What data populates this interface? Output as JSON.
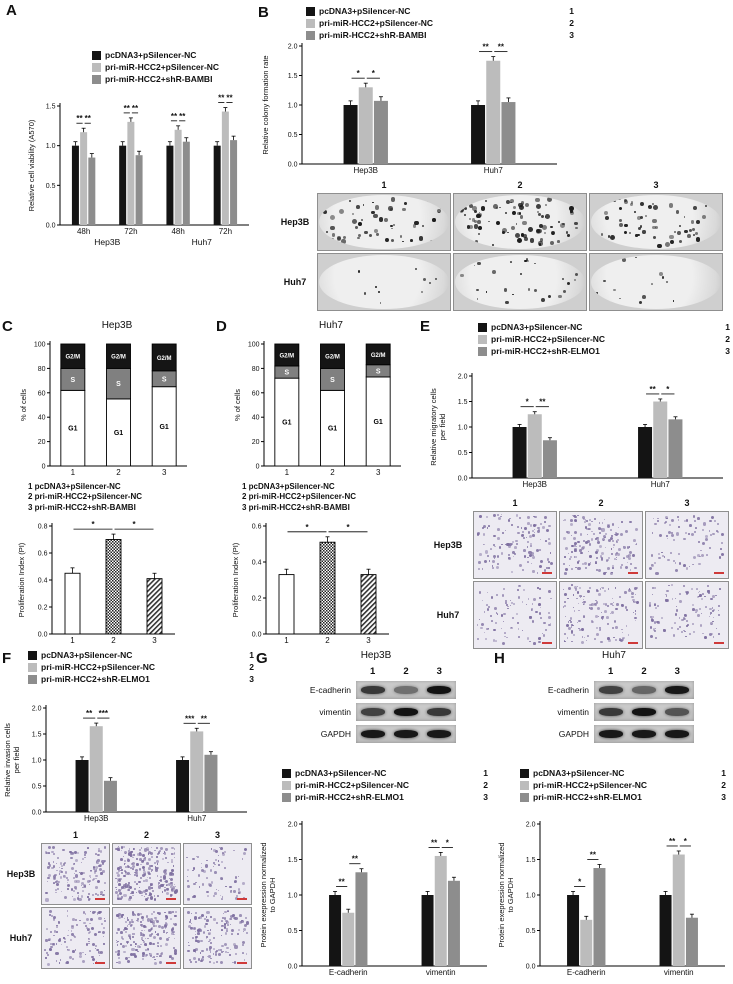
{
  "palette": {
    "s1": "#141414",
    "s2": "#bcbcbc",
    "s3": "#8d8d8d"
  },
  "panels": {
    "A": {
      "label": "A",
      "legend": {
        "items": [
          {
            "label": "pcDNA3+pSilencer-NC"
          },
          {
            "label": "pri-miR-HCC2+pSilencer-NC"
          },
          {
            "label": "pri-miR-HCC2+shR-BAMBI"
          }
        ]
      }
    },
    "B": {
      "label": "B",
      "legend": {
        "items": [
          {
            "label": "pcDNA3+pSilencer-NC",
            "num": "1"
          },
          {
            "label": "pri-miR-HCC2+pSilencer-NC",
            "num": "2"
          },
          {
            "label": "pri-miR-HCC2+shR-BAMBI",
            "num": "3"
          }
        ]
      },
      "images": {
        "kind": "colony",
        "cols": [
          "1",
          "2",
          "3"
        ],
        "rows": [
          {
            "label": "Hep3B",
            "size": 3.4,
            "counts": [
              55,
              95,
              65
            ]
          },
          {
            "label": "Huh7",
            "size": 2.6,
            "counts": [
              10,
              26,
              14
            ]
          }
        ]
      }
    },
    "C": {
      "label": "C",
      "title": "Hep3B",
      "conditions": [
        "1 pcDNA3+pSilencer-NC",
        "2 pri-miR-HCC2+pSilencer-NC",
        "3 pri-miR-HCC2+shR-BAMBI"
      ]
    },
    "D": {
      "label": "D",
      "title": "Huh7",
      "conditions": [
        "1 pcDNA3+pSilencer-NC",
        "2 pri-miR-HCC2+pSilencer-NC",
        "3 pri-miR-HCC2+shR-BAMBI"
      ]
    },
    "E": {
      "label": "E",
      "legend": {
        "items": [
          {
            "label": "pcDNA3+pSilencer-NC",
            "num": "1"
          },
          {
            "label": "pri-miR-HCC2+pSilencer-NC",
            "num": "2"
          },
          {
            "label": "pri-miR-HCC2+shR-ELMO1",
            "num": "3"
          }
        ]
      },
      "images": {
        "kind": "transwell",
        "cols": [
          "1",
          "2",
          "3"
        ],
        "rows": [
          {
            "label": "Hep3B",
            "size": 2.2,
            "counts": [
              130,
              175,
              85
            ]
          },
          {
            "label": "Huh7",
            "size": 2.0,
            "counts": [
              95,
              150,
              115
            ]
          }
        ]
      }
    },
    "F": {
      "label": "F",
      "legend": {
        "items": [
          {
            "label": "pcDNA3+pSilencer-NC",
            "num": "1"
          },
          {
            "label": "pri-miR-HCC2+pSilencer-NC",
            "num": "2"
          },
          {
            "label": "pri-miR-HCC2+shR-ELMO1",
            "num": "3"
          }
        ]
      },
      "images": {
        "kind": "transwell",
        "cols": [
          "1",
          "2",
          "3"
        ],
        "rows": [
          {
            "label": "Hep3B",
            "size": 2.2,
            "counts": [
              150,
              260,
              80
            ]
          },
          {
            "label": "Huh7",
            "size": 2.2,
            "counts": [
              120,
              210,
              150
            ]
          }
        ]
      }
    },
    "G": {
      "label": "G",
      "title": "Hep3B",
      "blot": {
        "lanes": [
          "1",
          "2",
          "3"
        ],
        "rows": [
          {
            "label": "E-cadherin",
            "bands": [
              0.75,
              0.45,
              0.95
            ]
          },
          {
            "label": "vimentin",
            "bands": [
              0.7,
              0.95,
              0.75
            ]
          },
          {
            "label": "GAPDH",
            "bands": [
              0.92,
              0.92,
              0.92
            ]
          }
        ]
      },
      "legend": {
        "items": [
          {
            "label": "pcDNA3+pSilencer-NC",
            "num": "1"
          },
          {
            "label": "pri-miR-HCC2+pSilencer-NC",
            "num": "2"
          },
          {
            "label": "pri-miR-HCC2+shR-ELMO1",
            "num": "3"
          }
        ]
      }
    },
    "H": {
      "label": "H",
      "title": "Huh7",
      "blot": {
        "lanes": [
          "1",
          "2",
          "3"
        ],
        "rows": [
          {
            "label": "E-cadherin",
            "bands": [
              0.7,
              0.5,
              0.92
            ]
          },
          {
            "label": "vimentin",
            "bands": [
              0.75,
              0.95,
              0.6
            ]
          },
          {
            "label": "GAPDH",
            "bands": [
              0.92,
              0.92,
              0.92
            ]
          }
        ]
      },
      "legend": {
        "items": [
          {
            "label": "pcDNA3+pSilencer-NC",
            "num": "1"
          },
          {
            "label": "pri-miR-HCC2+pSilencer-NC",
            "num": "2"
          },
          {
            "label": "pri-miR-HCC2+shR-ELMO1",
            "num": "3"
          }
        ]
      }
    }
  },
  "chart_data": [
    {
      "id": "A-viability",
      "type": "bar",
      "ylabel": "Relative cell viability (A570)",
      "ylim": [
        0,
        1.5
      ],
      "yticks": [
        0,
        0.5,
        1,
        1.5
      ],
      "dec": 1,
      "err": 0.05,
      "groups": [
        "48h",
        "72h",
        "48h",
        "72h"
      ],
      "supergroups": [
        {
          "label": "Hep3B",
          "from": 0,
          "to": 1
        },
        {
          "label": "Huh7",
          "from": 2,
          "to": 3
        }
      ],
      "series": [
        {
          "name": "pcDNA3+pSilencer-NC",
          "fill": "s1",
          "values": [
            1.0,
            1.0,
            1.0,
            1.0
          ]
        },
        {
          "name": "pri-miR-HCC2+pSilencer-NC",
          "fill": "s2",
          "values": [
            1.17,
            1.3,
            1.2,
            1.43
          ]
        },
        {
          "name": "pri-miR-HCC2+shR-BAMBI",
          "fill": "s3",
          "values": [
            0.85,
            0.88,
            1.05,
            1.07
          ]
        }
      ],
      "sig": [
        [
          "**",
          "**"
        ],
        [
          "**",
          "**"
        ],
        [
          "**",
          "**"
        ],
        [
          "**",
          "**"
        ]
      ]
    },
    {
      "id": "B-colony",
      "type": "bar",
      "ylabel": "Relative colony formation rate",
      "ylim": [
        0,
        2
      ],
      "yticks": [
        0,
        0.5,
        1,
        1.5,
        2
      ],
      "dec": 1,
      "err": 0.07,
      "groups": [
        "Hep3B",
        "Huh7"
      ],
      "series": [
        {
          "name": "pcDNA3+pSilencer-NC",
          "fill": "s1",
          "values": [
            1.0,
            1.0
          ]
        },
        {
          "name": "pri-miR-HCC2+pSilencer-NC",
          "fill": "s2",
          "values": [
            1.3,
            1.75
          ]
        },
        {
          "name": "pri-miR-HCC2+shR-BAMBI",
          "fill": "s3",
          "values": [
            1.07,
            1.05
          ]
        }
      ],
      "sig": [
        [
          "*",
          "*"
        ],
        [
          "**",
          "**"
        ]
      ]
    },
    {
      "id": "C-cellcycle",
      "type": "stacked-bar",
      "cell_line": "Hep3B",
      "ylabel": "% of cells",
      "ylim": [
        0,
        100
      ],
      "yticks": [
        0,
        20,
        40,
        60,
        80,
        100
      ],
      "dec": 0,
      "categories": [
        "1",
        "2",
        "3"
      ],
      "segments": [
        {
          "name": "G1",
          "fill": "#ffffff",
          "text": "#000000",
          "values": [
            62,
            55,
            65
          ]
        },
        {
          "name": "S",
          "fill": "#808080",
          "text": "#ffffff",
          "values": [
            18,
            25,
            13
          ]
        },
        {
          "name": "G2/M",
          "fill": "#151515",
          "text": "#ffffff",
          "values": [
            20,
            20,
            22
          ]
        }
      ]
    },
    {
      "id": "C-pi",
      "type": "bar",
      "ylabel": "Proliferation Index (PI)",
      "ylim": [
        0,
        0.8
      ],
      "yticks": [
        0,
        0.2,
        0.4,
        0.6,
        0.8
      ],
      "dec": 1,
      "err": 0.04,
      "categories": [
        "1",
        "2",
        "3"
      ],
      "values": [
        0.45,
        0.7,
        0.41
      ],
      "fills": [
        "white",
        "checker",
        "hatch"
      ],
      "sigPairs": [
        {
          "a": 0,
          "b": 1,
          "label": "*"
        },
        {
          "a": 1,
          "b": 2,
          "label": "*"
        }
      ]
    },
    {
      "id": "D-cellcycle",
      "type": "stacked-bar",
      "cell_line": "Huh7",
      "ylabel": "% of cells",
      "ylim": [
        0,
        100
      ],
      "yticks": [
        0,
        20,
        40,
        60,
        80,
        100
      ],
      "dec": 0,
      "categories": [
        "1",
        "2",
        "3"
      ],
      "segments": [
        {
          "name": "G1",
          "fill": "#ffffff",
          "text": "#000000",
          "values": [
            72,
            62,
            73
          ]
        },
        {
          "name": "S",
          "fill": "#808080",
          "text": "#ffffff",
          "values": [
            10,
            18,
            10
          ]
        },
        {
          "name": "G2/M",
          "fill": "#151515",
          "text": "#ffffff",
          "values": [
            18,
            20,
            17
          ]
        }
      ]
    },
    {
      "id": "D-pi",
      "type": "bar",
      "ylabel": "Proliferation Index (PI)",
      "ylim": [
        0,
        0.6
      ],
      "yticks": [
        0,
        0.2,
        0.4,
        0.6
      ],
      "dec": 1,
      "err": 0.03,
      "categories": [
        "1",
        "2",
        "3"
      ],
      "values": [
        0.33,
        0.51,
        0.33
      ],
      "fills": [
        "white",
        "checker",
        "hatch"
      ],
      "sigPairs": [
        {
          "a": 0,
          "b": 1,
          "label": "*"
        },
        {
          "a": 1,
          "b": 2,
          "label": "*"
        }
      ]
    },
    {
      "id": "E-migration",
      "type": "bar",
      "ylabel": "Relative migratory cells\nper field",
      "ylim": [
        0,
        2
      ],
      "yticks": [
        0,
        0.5,
        1,
        1.5,
        2
      ],
      "dec": 1,
      "err": 0.05,
      "groups": [
        "Hep3B",
        "Huh7"
      ],
      "series": [
        {
          "name": "pcDNA3+pSilencer-NC",
          "fill": "s1",
          "values": [
            1.0,
            1.0
          ]
        },
        {
          "name": "pri-miR-HCC2+pSilencer-NC",
          "fill": "s2",
          "values": [
            1.25,
            1.5
          ]
        },
        {
          "name": "pri-miR-HCC2+shR-ELMO1",
          "fill": "s3",
          "values": [
            0.74,
            1.15
          ]
        }
      ],
      "sig": [
        [
          "*",
          "**"
        ],
        [
          "**",
          "*"
        ]
      ]
    },
    {
      "id": "F-invasion",
      "type": "bar",
      "ylabel": "Relative invasion cells\nper field",
      "ylim": [
        0,
        2
      ],
      "yticks": [
        0,
        0.5,
        1,
        1.5,
        2
      ],
      "dec": 1,
      "err": 0.06,
      "groups": [
        "Hep3B",
        "Huh7"
      ],
      "series": [
        {
          "name": "pcDNA3+pSilencer-NC",
          "fill": "s1",
          "values": [
            1.0,
            1.0
          ]
        },
        {
          "name": "pri-miR-HCC2+pSilencer-NC",
          "fill": "s2",
          "values": [
            1.65,
            1.55
          ]
        },
        {
          "name": "pri-miR-HCC2+shR-ELMO1",
          "fill": "s3",
          "values": [
            0.6,
            1.1
          ]
        }
      ],
      "sig": [
        [
          "**",
          "***"
        ],
        [
          "***",
          "**"
        ]
      ]
    },
    {
      "id": "G-protein",
      "type": "bar",
      "ylabel": "Protein exepression normalized\nto GAPDH",
      "ylim": [
        0,
        2
      ],
      "yticks": [
        0,
        0.5,
        1,
        1.5,
        2
      ],
      "dec": 1,
      "err": 0.05,
      "groups": [
        "E-cadherin",
        "vimentin"
      ],
      "series": [
        {
          "name": "pcDNA3+pSilencer-NC",
          "fill": "s1",
          "values": [
            1.0,
            1.0
          ]
        },
        {
          "name": "pri-miR-HCC2+pSilencer-NC",
          "fill": "s2",
          "values": [
            0.75,
            1.55
          ]
        },
        {
          "name": "pri-miR-HCC2+shR-ELMO1",
          "fill": "s3",
          "values": [
            1.32,
            1.2
          ]
        }
      ],
      "sig": [
        [
          "**",
          "**"
        ],
        [
          "**",
          "*"
        ]
      ]
    },
    {
      "id": "H-protein",
      "type": "bar",
      "ylabel": "Protein exepression normalized\nto GAPDH",
      "ylim": [
        0,
        2
      ],
      "yticks": [
        0,
        0.5,
        1,
        1.5,
        2
      ],
      "dec": 1,
      "err": 0.05,
      "groups": [
        "E-cadherin",
        "vimentin"
      ],
      "series": [
        {
          "name": "pcDNA3+pSilencer-NC",
          "fill": "s1",
          "values": [
            1.0,
            1.0
          ]
        },
        {
          "name": "pri-miR-HCC2+pSilencer-NC",
          "fill": "s2",
          "values": [
            0.65,
            1.57
          ]
        },
        {
          "name": "pri-miR-HCC2+shR-ELMO1",
          "fill": "s3",
          "values": [
            1.38,
            0.68
          ]
        }
      ],
      "sig": [
        [
          "*",
          "**"
        ],
        [
          "**",
          "*"
        ]
      ]
    }
  ]
}
